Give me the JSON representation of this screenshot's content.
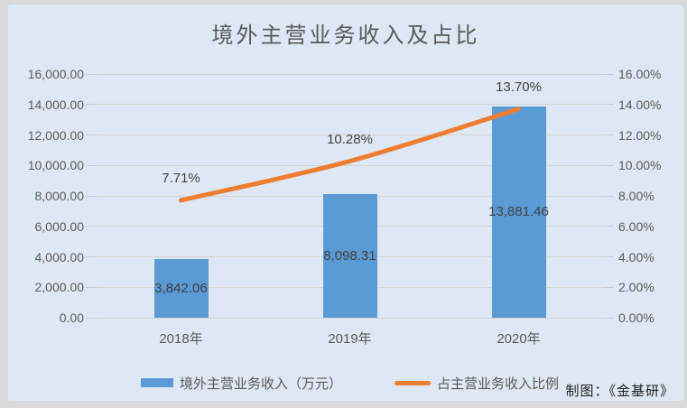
{
  "page": {
    "credit": "制图：《金基研》"
  },
  "chart_data": {
    "type": "combo",
    "title": "境外主营业务收入及占比",
    "categories": [
      "2018年",
      "2019年",
      "2020年"
    ],
    "series": [
      {
        "name": "境外主营业务收入（万元）",
        "type": "bar",
        "axis": "left",
        "color": "#5b9bd5",
        "values": [
          3842.06,
          8098.31,
          13881.46
        ],
        "labels": [
          "3,842.06",
          "8,098.31",
          "13,881.46"
        ]
      },
      {
        "name": "占主营业务收入比例",
        "type": "line",
        "axis": "right",
        "color": "#ed7d31",
        "values": [
          7.71,
          10.28,
          13.7
        ],
        "labels": [
          "7.71%",
          "10.28%",
          "13.70%"
        ]
      }
    ],
    "left_axis": {
      "min": 0,
      "max": 16000,
      "step": 2000,
      "ticks": [
        "16,000.00",
        "14,000.00",
        "12,000.00",
        "10,000.00",
        "8,000.00",
        "6,000.00",
        "4,000.00",
        "2,000.00",
        "0.00"
      ]
    },
    "right_axis": {
      "min": 0,
      "max": 16,
      "step": 2,
      "ticks": [
        "16.00%",
        "14.00%",
        "12.00%",
        "10.00%",
        "8.00%",
        "6.00%",
        "4.00%",
        "2.00%",
        "0.00%"
      ]
    },
    "grid": true,
    "legend_position": "bottom",
    "colors": {
      "page_background": "#d9d9d9",
      "chart_background": "#dee8f4",
      "gridline": "#d3d3d1",
      "axis_text": "#595959",
      "data_label_text": "#404040"
    }
  }
}
